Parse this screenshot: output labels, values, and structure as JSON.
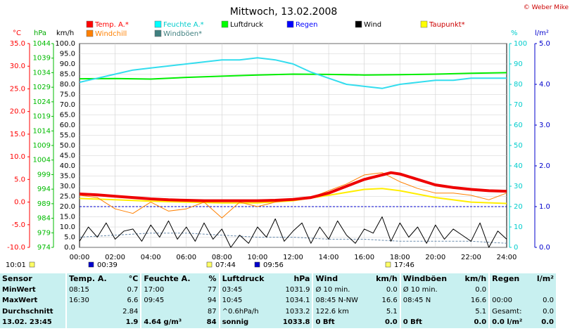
{
  "title": "Mittwoch, 13.02.2008",
  "copyright": "© Weber Mike",
  "units": {
    "temp": "°C",
    "hpa": "hPa",
    "kmh": "km/h",
    "pct": "%",
    "rain": "l/m²"
  },
  "legend": [
    {
      "label": "Temp. A.*",
      "color": "#ff0000"
    },
    {
      "label": "Windchill",
      "color": "#ff8000"
    },
    {
      "label": "Feuchte A.*",
      "color": "#00ffff"
    },
    {
      "label": "Windböen*",
      "color": "#408080"
    },
    {
      "label": "Luftdruck",
      "color": "#00ff00"
    },
    {
      "label": "Regen",
      "color": "#0000ff"
    },
    {
      "label": "Wind",
      "color": "#000000"
    },
    {
      "label": "Taupunkt*",
      "color": "#ffff00"
    }
  ],
  "events": [
    {
      "label": "10:01"
    },
    {
      "label": "00:39"
    },
    {
      "label": "07:44"
    },
    {
      "label": "09:56"
    },
    {
      "label": "17:46"
    }
  ],
  "chart_data": {
    "type": "line",
    "x_unit": "hours",
    "xlim": [
      0,
      24
    ],
    "x_ticks": [
      "00:00",
      "02:00",
      "04:00",
      "06:00",
      "08:00",
      "10:00",
      "12:00",
      "14:00",
      "16:00",
      "18:00",
      "20:00",
      "22:00",
      "24:00"
    ],
    "axes": {
      "temp": {
        "ticks": [
          "35.0",
          "30.0",
          "25.0",
          "20.0",
          "15.0",
          "10.0",
          "5.0",
          "0.0",
          "-5.0",
          "-10.0"
        ],
        "lim": [
          -10,
          35
        ]
      },
      "hpa": {
        "ticks": [
          "1044",
          "1039",
          "1034",
          "1029",
          "1024",
          "1019",
          "1014",
          "1009",
          "1004",
          "999",
          "994",
          "989",
          "984",
          "979",
          "974"
        ],
        "lim": [
          974,
          1044
        ]
      },
      "kmh": {
        "ticks": [
          "100.0",
          "95.0",
          "90.0",
          "85.0",
          "80.0",
          "75.0",
          "70.0",
          "65.0",
          "60.0",
          "55.0",
          "50.0",
          "45.0",
          "40.0",
          "35.0",
          "30.0",
          "25.0",
          "20.0",
          "15.0",
          "10.0",
          "5.0",
          "0.0"
        ],
        "lim": [
          0,
          100
        ]
      },
      "pct": {
        "ticks": [
          "100",
          "90",
          "80",
          "70",
          "60",
          "50",
          "40",
          "30",
          "20",
          "10",
          "0"
        ],
        "lim": [
          0,
          100
        ]
      },
      "rain": {
        "ticks": [
          "5.0",
          "4.0",
          "3.0",
          "2.0",
          "1.0",
          "0.0"
        ],
        "lim": [
          0,
          5
        ]
      }
    },
    "series": [
      {
        "name": "Temp. A.*",
        "axis": "temp",
        "x": [
          0,
          1,
          2,
          3,
          4,
          5,
          6,
          7,
          8,
          9,
          10,
          11,
          12,
          13,
          14,
          15,
          16,
          17,
          17.5,
          18,
          19,
          20,
          21,
          22,
          23,
          24
        ],
        "y": [
          1.8,
          1.6,
          1.3,
          1.0,
          0.7,
          0.5,
          0.4,
          0.3,
          0.3,
          0.3,
          0.3,
          0.4,
          0.6,
          1.0,
          2.0,
          3.5,
          5.0,
          6.0,
          6.5,
          6.2,
          5.0,
          3.8,
          3.2,
          2.8,
          2.5,
          2.4
        ]
      },
      {
        "name": "Windchill",
        "axis": "temp",
        "x": [
          0,
          1,
          2,
          3,
          4,
          5,
          6,
          7,
          8,
          9,
          10,
          11,
          12,
          13,
          14,
          15,
          16,
          17,
          18,
          19,
          20,
          21,
          22,
          23,
          24
        ],
        "y": [
          1.5,
          1.0,
          -1.5,
          -2.5,
          0.0,
          -2.0,
          -1.5,
          0.0,
          -3.5,
          0.0,
          -1.0,
          0.0,
          0.5,
          1.0,
          2.5,
          4.0,
          6.0,
          6.5,
          4.5,
          3.0,
          2.0,
          2.0,
          1.5,
          0.5,
          2.0
        ]
      },
      {
        "name": "Taupunkt*",
        "axis": "temp",
        "x": [
          0,
          2,
          4,
          6,
          8,
          10,
          12,
          14,
          16,
          17,
          18,
          20,
          22,
          24
        ],
        "y": [
          0.8,
          0.5,
          0.2,
          0.0,
          -0.2,
          -0.2,
          0.3,
          1.5,
          2.8,
          3.0,
          2.5,
          1.0,
          0.0,
          -0.3
        ]
      },
      {
        "name": "Feuchte A.*",
        "axis": "pct",
        "x": [
          0,
          1,
          2,
          3,
          4,
          5,
          6,
          7,
          8,
          9,
          10,
          11,
          12,
          13,
          14,
          15,
          16,
          17,
          18,
          19,
          20,
          21,
          22,
          23,
          24
        ],
        "y": [
          81,
          83,
          85,
          87,
          88,
          89,
          90,
          91,
          92,
          92,
          93,
          92,
          90,
          86,
          83,
          80,
          79,
          78,
          80,
          81,
          82,
          82,
          83,
          83,
          83
        ]
      },
      {
        "name": "Luftdruck",
        "axis": "hpa",
        "x": [
          0,
          2,
          4,
          6,
          8,
          10,
          12,
          14,
          16,
          18,
          20,
          22,
          24
        ],
        "y": [
          1031.9,
          1032.0,
          1031.8,
          1032.4,
          1032.8,
          1033.2,
          1033.5,
          1033.4,
          1033.2,
          1033.3,
          1033.5,
          1033.8,
          1034.0
        ]
      },
      {
        "name": "Wind",
        "axis": "kmh",
        "x": [
          0,
          0.5,
          1,
          1.5,
          2,
          2.5,
          3,
          3.5,
          4,
          4.5,
          5,
          5.5,
          6,
          6.5,
          7,
          7.5,
          8,
          8.5,
          9,
          9.5,
          10,
          10.5,
          11,
          11.5,
          12,
          12.5,
          13,
          13.5,
          14,
          14.5,
          15,
          15.5,
          16,
          16.5,
          17,
          17.5,
          18,
          18.5,
          19,
          19.5,
          20,
          20.5,
          21,
          21.5,
          22,
          22.5,
          23,
          23.5,
          24
        ],
        "y": [
          3,
          10,
          5,
          12,
          4,
          8,
          9,
          3,
          11,
          5,
          13,
          4,
          10,
          3,
          12,
          4,
          9,
          0,
          6,
          2,
          10,
          5,
          14,
          3,
          8,
          12,
          2,
          10,
          4,
          13,
          6,
          2,
          9,
          7,
          15,
          3,
          12,
          5,
          10,
          2,
          11,
          4,
          9,
          6,
          3,
          12,
          0,
          8,
          4
        ]
      },
      {
        "name": "Windböen*",
        "axis": "kmh",
        "x": [
          0,
          2,
          4,
          6,
          8,
          10,
          12,
          14,
          16,
          18,
          20,
          22,
          24
        ],
        "y": [
          5,
          6,
          7,
          7,
          6,
          5,
          5,
          4,
          4,
          3,
          3,
          3,
          2
        ]
      }
    ],
    "stats": {
      "headers": [
        "Sensor",
        "Temp. A.",
        "°C",
        "Feuchte A.",
        "%",
        "Luftdruck",
        "hPa",
        "Wind",
        "km/h",
        "Windböen",
        "km/h",
        "Regen",
        "l/m²"
      ],
      "rows": [
        [
          "MinWert",
          "08:15",
          "0.7",
          "17:00",
          "77",
          "03:45",
          "1031.9",
          "Ø 10 min.",
          "0.0",
          "Ø 10 min.",
          "0.0",
          "",
          ""
        ],
        [
          "MaxWert",
          "16:30",
          "6.6",
          "09:45",
          "94",
          "10:45",
          "1034.1",
          "08:45   N-NW",
          "16.6",
          "08:45   N",
          "16.6",
          "00:00",
          "0.0"
        ],
        [
          "Durchschnitt",
          "",
          "2.84",
          "",
          "87",
          "^0.6hPa/h",
          "1033.2",
          "122.6 km",
          "5.1",
          "",
          "5.1",
          "Gesamt:",
          "0.0"
        ],
        [
          "13.02.  23:45",
          "",
          "1.9",
          "4.64 g/m³",
          "84",
          "sonnig",
          "1033.8",
          "0 Bft",
          "0.0",
          "0 Bft",
          "0.0",
          "0.0 l/m²",
          "0.0"
        ]
      ]
    }
  }
}
